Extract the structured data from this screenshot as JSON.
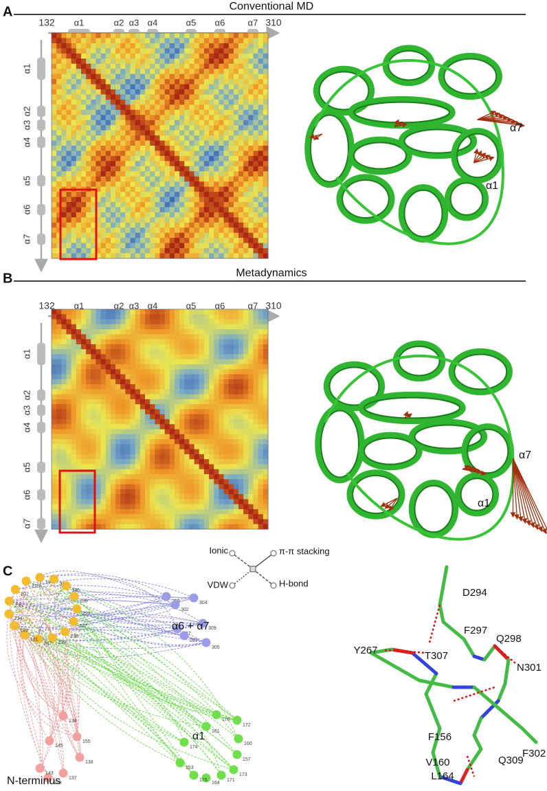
{
  "panels": [
    {
      "letter": "A",
      "title": "Conventional MD",
      "axis_start": "132",
      "axis_end": "310",
      "helices": [
        "α1",
        "α2",
        "α3",
        "α4",
        "α5",
        "α6",
        "α7"
      ],
      "structure_labels": [
        "α7",
        "α1"
      ]
    },
    {
      "letter": "B",
      "title": "Metadynamics",
      "axis_start": "132",
      "axis_end": "310",
      "helices": [
        "α1",
        "α2",
        "α3",
        "α4",
        "α5",
        "α6",
        "α7"
      ],
      "structure_labels": [
        "α7",
        "α1"
      ]
    }
  ],
  "panel_c": {
    "letter": "C",
    "legend": [
      "Ionic",
      "π-π stacking",
      "VDW",
      "H-bond"
    ],
    "groups": [
      "α6 + α7",
      "α1",
      "N-terminus"
    ],
    "nodes": {
      "ring": [
        "215",
        "184",
        "39",
        "186",
        "238",
        "223",
        "237",
        "236",
        "239",
        "267",
        "181",
        "199",
        "234",
        "235",
        "202"
      ],
      "a67": [
        "299",
        "304",
        "302",
        "309",
        "287",
        "297",
        "305"
      ],
      "a1": [
        "170",
        "172",
        "160",
        "157",
        "173",
        "171",
        "164",
        "176",
        "153",
        "174",
        "161"
      ],
      "nterm": [
        "134",
        "155",
        "138",
        "137",
        "139",
        "143",
        "145"
      ]
    },
    "residues": [
      "D294",
      "F297",
      "Q298",
      "Y267",
      "T307",
      "N301",
      "F156",
      "V160",
      "Q309",
      "F302",
      "L164"
    ]
  }
}
